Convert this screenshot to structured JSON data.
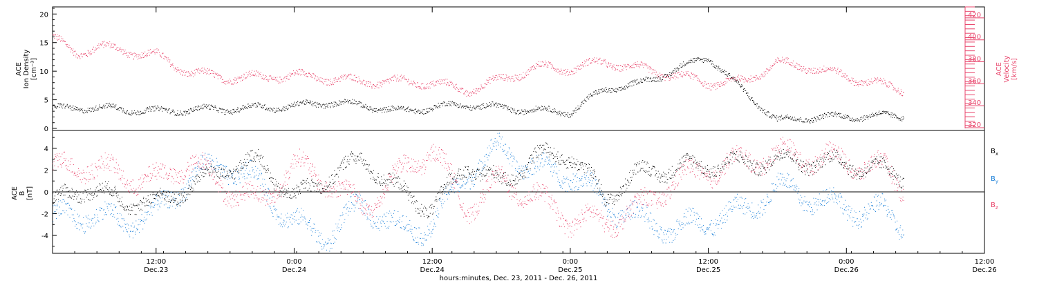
{
  "colors": {
    "density": "#000000",
    "velocity": "#e8436a",
    "bx": "#000000",
    "by": "#1a7fd8",
    "bz": "#e8436a",
    "axis": "#000000"
  },
  "xaxis": {
    "title": "hours:minutes, Dec. 23, 2011 - Dec. 26, 2011",
    "ticks": [
      {
        "time": "12:00",
        "date": "Dec.23"
      },
      {
        "time": "0:00",
        "date": "Dec.24"
      },
      {
        "time": "12:00",
        "date": "Dec.24"
      },
      {
        "time": "0:00",
        "date": "Dec.25"
      },
      {
        "time": "12:00",
        "date": "Dec.25"
      },
      {
        "time": "0:00",
        "date": "Dec.26"
      },
      {
        "time": "12:00",
        "date": "Dec.26"
      }
    ]
  },
  "chart_data": [
    {
      "type": "scatter",
      "panel": "top",
      "ylabel_left": [
        "ACE",
        "Ion Density",
        "[cm⁻³]"
      ],
      "ylabel_right": [
        "ACE",
        "Velocity",
        "[km/s]"
      ],
      "ylim_left": [
        0,
        21
      ],
      "ylim_right": [
        320,
        430
      ],
      "yticks_left": [
        0,
        5,
        10,
        15,
        20
      ],
      "yticks_right": [
        320,
        340,
        360,
        380,
        400,
        420
      ],
      "x_range": [
        "2011-12-23 03:00",
        "2011-12-26 12:00"
      ],
      "series": [
        {
          "axis": "left",
          "x": [
            "2011-12-23 03:00",
            "2011-12-23 06:00",
            "2011-12-23 09:00",
            "2011-12-23 12:00",
            "2011-12-23 15:00",
            "2011-12-23 18:00",
            "2011-12-23 21:00",
            "2011-12-24 00:00",
            "2011-12-24 03:00",
            "2011-12-24 06:00",
            "2011-12-24 09:00",
            "2011-12-24 12:00",
            "2011-12-24 15:00",
            "2011-12-24 18:00",
            "2011-12-24 21:00",
            "2011-12-25 00:00",
            "2011-12-25 03:00",
            "2011-12-25 06:00",
            "2011-12-25 09:00",
            "2011-12-25 12:00",
            "2011-12-25 15:00",
            "2011-12-25 18:00",
            "2011-12-25 21:00",
            "2011-12-26 00:00",
            "2011-12-26 03:00",
            "2011-12-26 05:00"
          ],
          "values": [
            3.4,
            3.7,
            3.4,
            3.0,
            3.3,
            3.4,
            3.7,
            3.9,
            4.6,
            4.1,
            3.0,
            3.7,
            4.2,
            3.6,
            3.2,
            2.9,
            6.9,
            7.8,
            10.2,
            12.6,
            6.6,
            1.4,
            2.0,
            2.1,
            2.2,
            2.3
          ]
        },
        {
          "axis": "right",
          "x": [
            "2011-12-23 03:00",
            "2011-12-23 05:00",
            "2011-12-23 07:00",
            "2011-12-23 10:00",
            "2011-12-23 12:00",
            "2011-12-23 15:00",
            "2011-12-23 18:00",
            "2011-12-23 21:00",
            "2011-12-24 00:00",
            "2011-12-24 03:00",
            "2011-12-24 06:00",
            "2011-12-24 09:00",
            "2011-12-24 12:00",
            "2011-12-24 15:00",
            "2011-12-24 18:00",
            "2011-12-24 21:00",
            "2011-12-25 00:00",
            "2011-12-25 03:00",
            "2011-12-25 06:00",
            "2011-12-25 09:00",
            "2011-12-25 12:00",
            "2011-12-25 15:00",
            "2011-12-25 18:00",
            "2011-12-25 21:00",
            "2011-12-26 00:00",
            "2011-12-26 03:00",
            "2011-12-26 05:00"
          ],
          "values": [
            402,
            388,
            394,
            389,
            386,
            370,
            366,
            366,
            368,
            365,
            362,
            362,
            361,
            354,
            364,
            375,
            374,
            380,
            374,
            368,
            361,
            362,
            379,
            375,
            367,
            359,
            355
          ]
        }
      ]
    },
    {
      "type": "scatter",
      "panel": "bottom",
      "ylabel": [
        "ACE",
        "B",
        "[nT]"
      ],
      "ylim": [
        -5.2,
        5.2
      ],
      "yticks": [
        -4,
        -2,
        0,
        2,
        4
      ],
      "x_range": [
        "2011-12-23 03:00",
        "2011-12-26 12:00"
      ],
      "series": [
        {
          "name": "Bx",
          "x": [
            "2011-12-23 03:00",
            "2011-12-23 06:00",
            "2011-12-23 09:00",
            "2011-12-23 12:00",
            "2011-12-23 15:00",
            "2011-12-23 18:00",
            "2011-12-23 21:00",
            "2011-12-24 00:00",
            "2011-12-24 03:00",
            "2011-12-24 06:00",
            "2011-12-24 09:00",
            "2011-12-24 12:00",
            "2011-12-24 15:00",
            "2011-12-24 18:00",
            "2011-12-24 21:00",
            "2011-12-25 00:00",
            "2011-12-25 03:00",
            "2011-12-25 06:00",
            "2011-12-25 09:00",
            "2011-12-25 12:00",
            "2011-12-25 15:00",
            "2011-12-25 18:00",
            "2011-12-25 21:00",
            "2011-12-26 00:00",
            "2011-12-26 03:00",
            "2011-12-26 05:00"
          ],
          "values": [
            -1.0,
            0.5,
            -0.8,
            -1.0,
            0.5,
            2.2,
            2.8,
            -0.6,
            1.5,
            3.0,
            0.2,
            -1.5,
            2.5,
            0.8,
            3.2,
            3.5,
            -0.5,
            1.8,
            2.2,
            2.5,
            2.6,
            3.0,
            2.8,
            2.6,
            2.0,
            1.4
          ]
        },
        {
          "name": "By",
          "x": [
            "2011-12-23 03:00",
            "2011-12-23 06:00",
            "2011-12-23 09:00",
            "2011-12-23 12:00",
            "2011-12-23 15:00",
            "2011-12-23 18:00",
            "2011-12-23 21:00",
            "2011-12-24 00:00",
            "2011-12-24 03:00",
            "2011-12-24 06:00",
            "2011-12-24 09:00",
            "2011-12-24 12:00",
            "2011-12-24 15:00",
            "2011-12-24 18:00",
            "2011-12-24 21:00",
            "2011-12-25 00:00",
            "2011-12-25 03:00",
            "2011-12-25 06:00",
            "2011-12-25 09:00",
            "2011-12-25 12:00",
            "2011-12-25 15:00",
            "2011-12-25 18:00",
            "2011-12-25 21:00",
            "2011-12-26 00:00",
            "2011-12-26 03:00",
            "2011-12-26 05:00"
          ],
          "values": [
            -2.5,
            -2.0,
            -2.8,
            -2.0,
            1.5,
            2.5,
            0.8,
            -3.0,
            -4.0,
            -1.0,
            -3.5,
            -3.0,
            1.8,
            4.0,
            2.0,
            1.8,
            -1.0,
            -2.5,
            -3.5,
            -2.5,
            -1.8,
            0.5,
            -0.5,
            -1.5,
            -1.8,
            -3.2
          ]
        },
        {
          "name": "Bz",
          "x": [
            "2011-12-23 03:00",
            "2011-12-23 06:00",
            "2011-12-23 09:00",
            "2011-12-23 12:00",
            "2011-12-23 15:00",
            "2011-12-23 18:00",
            "2011-12-23 21:00",
            "2011-12-24 00:00",
            "2011-12-24 03:00",
            "2011-12-24 06:00",
            "2011-12-24 09:00",
            "2011-12-24 12:00",
            "2011-12-24 15:00",
            "2011-12-24 18:00",
            "2011-12-24 21:00",
            "2011-12-25 00:00",
            "2011-12-25 03:00",
            "2011-12-25 06:00",
            "2011-12-25 09:00",
            "2011-12-25 12:00",
            "2011-12-25 15:00",
            "2011-12-25 18:00",
            "2011-12-25 21:00",
            "2011-12-26 00:00",
            "2011-12-26 03:00",
            "2011-12-26 05:00"
          ],
          "values": [
            2.0,
            2.5,
            1.5,
            1.0,
            2.8,
            0.5,
            -1.0,
            2.5,
            1.0,
            -1.5,
            1.5,
            4.0,
            -1.5,
            1.0,
            -0.5,
            -2.5,
            -2.8,
            -1.5,
            1.0,
            2.0,
            2.8,
            3.5,
            3.2,
            2.8,
            2.2,
            0.5
          ]
        }
      ],
      "legend": [
        "Bx",
        "By",
        "Bz"
      ],
      "legend_position": "right",
      "zero_line": true
    }
  ]
}
